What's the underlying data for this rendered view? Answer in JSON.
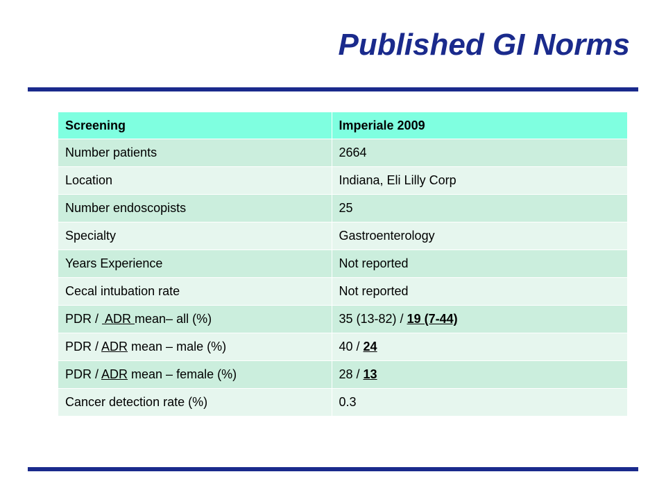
{
  "slide": {
    "title": "Published GI Norms"
  },
  "table": {
    "header": {
      "col1": "Screening",
      "col2": "Imperiale 2009"
    },
    "rows": [
      {
        "label": "Number patients",
        "value": "2664"
      },
      {
        "label": "Location",
        "value": "Indiana, Eli Lilly Corp"
      },
      {
        "label": "Number endoscopists",
        "value": "25"
      },
      {
        "label": "Specialty",
        "value": "Gastroenterology"
      },
      {
        "label": "Years Experience",
        "value": "Not reported"
      },
      {
        "label": "Cecal intubation rate",
        "value": "Not reported"
      },
      {
        "label_pre": "PDR / ",
        "label_underlined": " ADR ",
        "label_post": "mean– all (%)",
        "value_pre": "35 (13-82) / ",
        "value_emph": "19 (7-44)"
      },
      {
        "label_pre": "PDR / ",
        "label_underlined": "ADR",
        "label_post": " mean – male (%)",
        "value_pre": "40 / ",
        "value_emph": "24"
      },
      {
        "label_pre": "PDR / ",
        "label_underlined": "ADR",
        "label_post": " mean – female (%)",
        "value_pre": "28 / ",
        "value_emph": "13"
      },
      {
        "label": "Cancer detection rate (%)",
        "value": "0.3"
      }
    ]
  },
  "colors": {
    "title": "#1a2a8c",
    "rule": "#1a2a8c",
    "header_bg": "#7fffe0",
    "row_dark": "#cbeedd",
    "row_light": "#e6f6ee"
  }
}
